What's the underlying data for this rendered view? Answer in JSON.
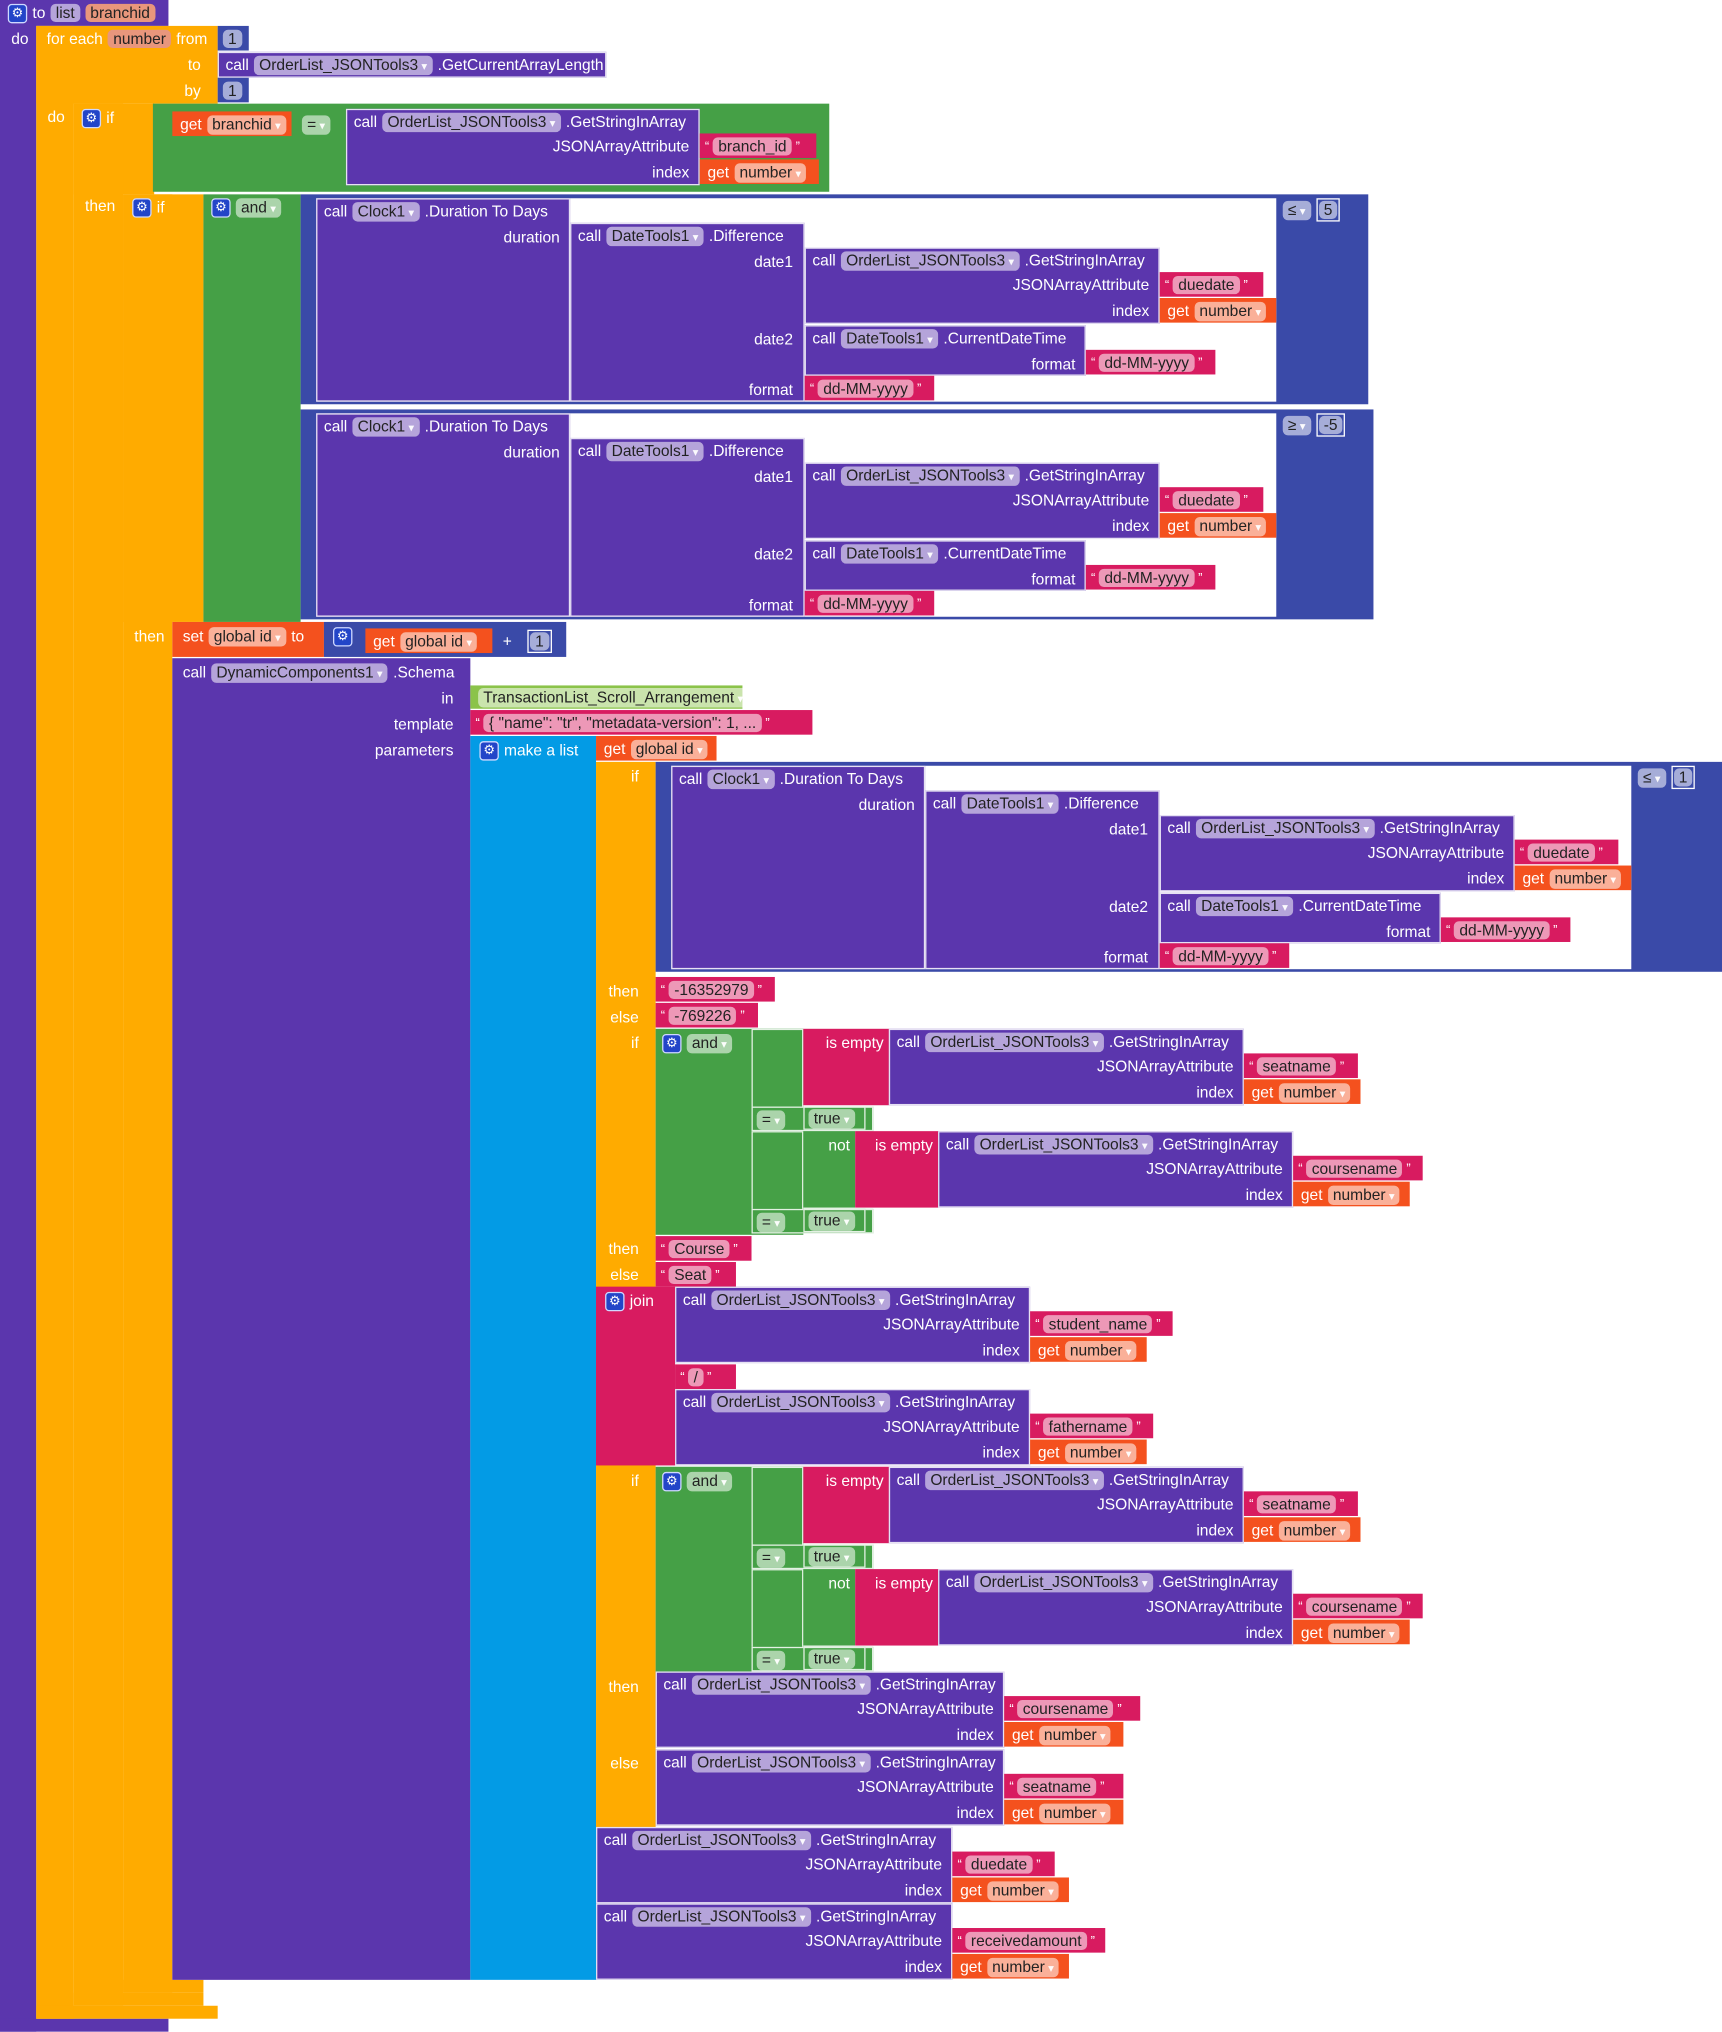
{
  "procedure": {
    "to": "to",
    "name": "list",
    "param": "branchid",
    "do": "do"
  },
  "foreach": {
    "for_each": "for each",
    "var": "number",
    "from": "from",
    "from_val": "1",
    "to": "to",
    "by": "by",
    "by_val": "1",
    "do": "do"
  },
  "common": {
    "call": "call",
    "get": "get",
    "json_tools": "OrderList_JSONTools3",
    "get_string": ".GetStringInArray",
    "get_length": ".GetCurrentArrayLength",
    "attr": "JSONArrayAttribute",
    "index": "index",
    "number": "number",
    "if": "if",
    "then": "then",
    "else": "else",
    "and": "and",
    "eq": "=",
    "true": "true",
    "is_empty": "is empty",
    "not": "not",
    "clock": "Clock1",
    "duration": ".Duration To Days",
    "duration_arg": "duration",
    "datetools": "DateTools1",
    "difference": ".Difference",
    "date1": "date1",
    "date2": "date2",
    "current": ".CurrentDateTime",
    "format": "format",
    "date_fmt": "dd-MM-yyyy",
    "duedate": "duedate"
  },
  "outer_if": {
    "branchid": "branchid",
    "branch_id": "branch_id"
  },
  "compare1": {
    "op": "≤",
    "value": "5"
  },
  "compare2": {
    "op": "≥",
    "value": "-5"
  },
  "compare3": {
    "op": "≤",
    "value": "1"
  },
  "set": {
    "set": "set",
    "var": "global id",
    "to": "to",
    "plus": "+",
    "one": "1"
  },
  "schema": {
    "component": "DynamicComponents1",
    "method": ".Schema",
    "in": "in",
    "template": "template",
    "parameters": "parameters",
    "arrangement": "TransactionList_Scroll_Arrangement",
    "template_val": "{     \"name\": \"tr\",     \"metadata-version\": 1,  ...",
    "make_list": "make a list"
  },
  "values": {
    "then_val": "-16352979",
    "else_val": "-769226",
    "seatname": "seatname",
    "coursename": "coursename",
    "course": "Course",
    "seat": "Seat",
    "join": "join",
    "student_name": "student_name",
    "slash": "/",
    "fathername": "fathername",
    "receivedamount": "receivedamount"
  },
  "colors": {
    "procedure": "#5b36ad",
    "control": "#ffab00",
    "logic": "#45a046",
    "math": "#3a4aa8",
    "text": "#d81b60",
    "variable": "#f4511e",
    "list": "#039be5",
    "component": "#8bc34a"
  }
}
